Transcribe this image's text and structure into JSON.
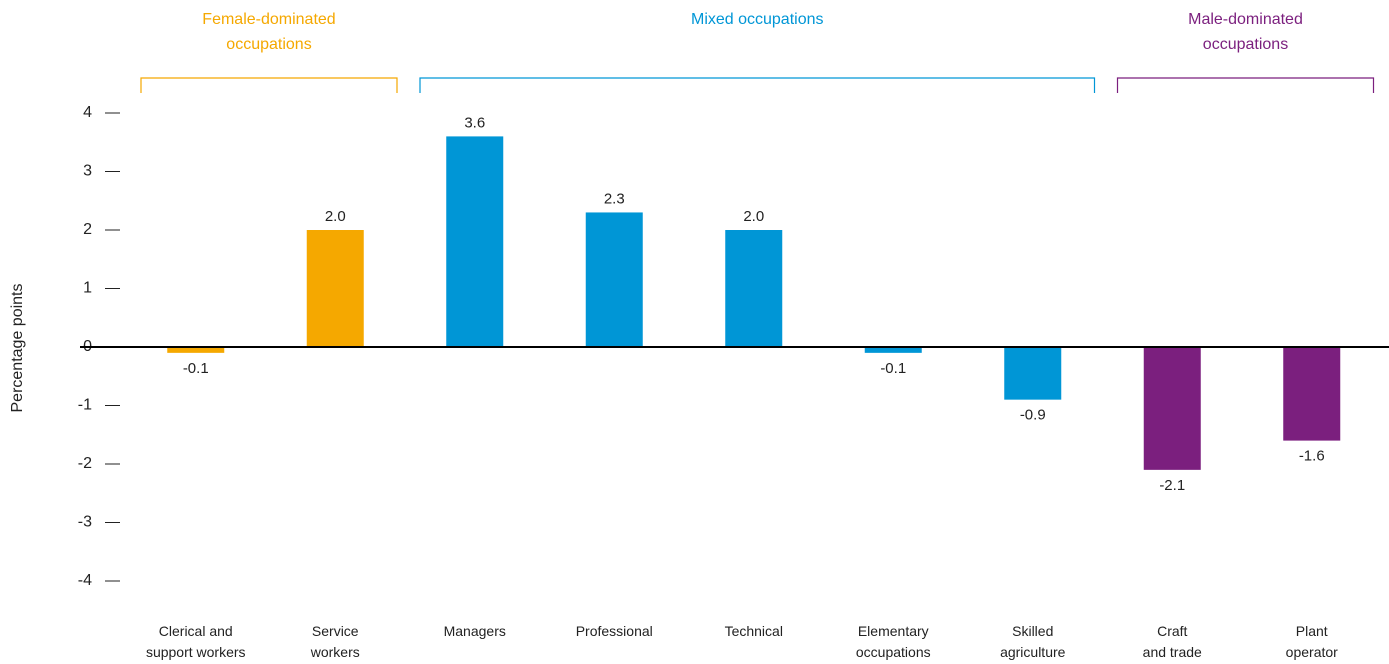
{
  "chart_data": {
    "type": "bar",
    "y_label": "Percentage points",
    "categories": [
      "Clerical and\nsupport workers",
      "Service\nworkers",
      "Managers",
      "Professional",
      "Technical",
      "Elementary\noccupations",
      "Skilled\nagriculture",
      "Craft\nand trade",
      "Plant\noperator"
    ],
    "values": [
      -0.1,
      2.0,
      3.6,
      2.3,
      2.0,
      -0.1,
      -0.9,
      -2.1,
      -1.6
    ],
    "value_labels": [
      "-0.1",
      "2.0",
      "3.6",
      "2.3",
      "2.0",
      "-0.1",
      "-0.9",
      "-2.1",
      "-1.6"
    ],
    "groups": [
      {
        "name": "Female-dominated\noccupations",
        "color": "#f5a800",
        "size": 2
      },
      {
        "name": "Mixed occupations",
        "color": "#0096d6",
        "size": 5
      },
      {
        "name": "Male-dominated\noccupations",
        "color": "#7b1f7e",
        "size": 2
      }
    ],
    "ylim": [
      -4,
      4
    ],
    "yticks": [
      -4,
      -3,
      -2,
      -1,
      0,
      1,
      2,
      3,
      4
    ]
  }
}
